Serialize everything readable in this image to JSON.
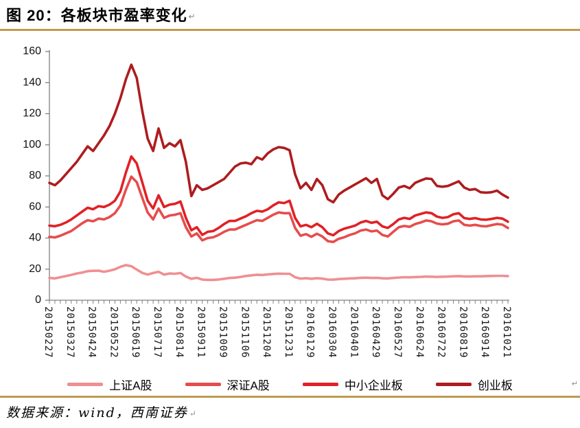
{
  "page": {
    "title": "图 20：各板块市盈率变化",
    "title_paragraph_mark": "↵",
    "row_end_mark": "↵",
    "source_note": "数据来源：wind，西南证券",
    "source_paragraph_mark": "↵"
  },
  "colors": {
    "accent_rule": "#C0994F",
    "axis": "#808080",
    "tick_text": "#111111"
  },
  "chart_data": {
    "type": "line",
    "title": "各板块市盈率变化",
    "x_note": "weekly PE-ratio observations 2015-02-27 to 2016-10-21; axis labels every 4th point",
    "x_labels": [
      "20150227",
      "20150327",
      "20150424",
      "20150522",
      "20150619",
      "20150717",
      "20150814",
      "20150911",
      "20151009",
      "20151106",
      "20151204",
      "20151231",
      "20160129",
      "20160304",
      "20160401",
      "20160429",
      "20160527",
      "20160624",
      "20160722",
      "20160819",
      "20160914",
      "20161021"
    ],
    "x_points_per_label": 4,
    "y_axis": {
      "min": 0,
      "max": 160,
      "step": 20,
      "ticks": [
        0,
        20,
        40,
        60,
        80,
        100,
        120,
        140,
        160
      ]
    },
    "legend_position": "bottom",
    "grid": false,
    "series": [
      {
        "key": "shanghai-a",
        "name": "上证A股",
        "color": "#EF8F92",
        "values": [
          14.4,
          14.0,
          14.8,
          15.5,
          16.3,
          17.2,
          17.8,
          18.7,
          18.9,
          19.0,
          18.3,
          19.0,
          19.9,
          21.5,
          22.6,
          21.9,
          19.7,
          17.6,
          16.5,
          17.5,
          18.3,
          16.5,
          17.2,
          17.0,
          17.5,
          15.2,
          13.8,
          14.4,
          13.3,
          13.1,
          13.1,
          13.3,
          13.8,
          14.3,
          14.5,
          15.0,
          15.6,
          16.0,
          16.4,
          16.2,
          16.6,
          16.9,
          17.1,
          17.0,
          17.0,
          14.8,
          13.9,
          14.2,
          13.8,
          14.2,
          13.9,
          13.3,
          13.2,
          13.6,
          13.8,
          14.0,
          14.1,
          14.4,
          14.5,
          14.3,
          14.4,
          14.1,
          14.0,
          14.3,
          14.6,
          14.8,
          14.7,
          14.9,
          15.0,
          15.2,
          15.1,
          15.0,
          15.1,
          15.2,
          15.4,
          15.5,
          15.3,
          15.3,
          15.4,
          15.4,
          15.5,
          15.6,
          15.7,
          15.7,
          15.5
        ]
      },
      {
        "key": "shenzhen-a",
        "name": "深证A股",
        "color": "#E74C4C",
        "values": [
          40.8,
          40.4,
          41.5,
          43.0,
          44.5,
          47.0,
          49.5,
          51.5,
          50.8,
          52.5,
          52.0,
          53.5,
          56.0,
          61.0,
          71.0,
          79.5,
          76.0,
          66.0,
          56.5,
          52.0,
          59.0,
          53.0,
          54.5,
          55.0,
          56.0,
          47.0,
          41.0,
          43.0,
          38.5,
          40.0,
          40.5,
          42.0,
          44.0,
          45.5,
          45.5,
          47.0,
          48.5,
          50.0,
          51.5,
          51.0,
          53.0,
          55.0,
          56.5,
          56.0,
          56.0,
          46.5,
          41.5,
          42.5,
          40.8,
          42.8,
          41.0,
          38.0,
          37.5,
          39.5,
          40.5,
          42.0,
          43.0,
          44.8,
          45.5,
          44.3,
          44.8,
          42.0,
          41.0,
          44.0,
          47.0,
          47.8,
          47.2,
          49.0,
          50.0,
          51.3,
          50.8,
          49.3,
          48.8,
          49.2,
          50.8,
          51.3,
          48.5,
          48.0,
          48.5,
          47.8,
          47.5,
          48.3,
          49.0,
          48.6,
          46.5
        ]
      },
      {
        "key": "sme-board",
        "name": "中小企业板",
        "color": "#E02125",
        "values": [
          48.0,
          47.6,
          48.5,
          50.0,
          52.0,
          54.5,
          57.0,
          59.5,
          58.5,
          60.5,
          60.0,
          61.5,
          64.0,
          70.0,
          82.0,
          92.5,
          88.0,
          76.0,
          64.0,
          59.0,
          67.5,
          60.0,
          61.5,
          62.0,
          63.5,
          53.0,
          45.0,
          47.0,
          42.0,
          44.0,
          44.5,
          46.5,
          49.0,
          51.0,
          51.0,
          52.5,
          54.0,
          56.0,
          57.5,
          57.0,
          58.5,
          61.0,
          63.0,
          62.5,
          64.0,
          53.0,
          47.5,
          48.5,
          47.0,
          49.2,
          47.0,
          43.0,
          41.8,
          44.5,
          46.0,
          47.0,
          48.0,
          50.0,
          51.0,
          49.8,
          50.5,
          47.5,
          46.5,
          49.0,
          52.0,
          53.0,
          52.3,
          54.5,
          55.5,
          56.5,
          56.0,
          53.8,
          53.0,
          53.5,
          55.3,
          56.0,
          52.8,
          52.3,
          52.8,
          52.0,
          51.8,
          52.3,
          53.0,
          52.5,
          50.5
        ]
      },
      {
        "key": "chinext",
        "name": "创业板",
        "color": "#AE1C1F",
        "values": [
          75.5,
          74.0,
          77.0,
          81.0,
          85.0,
          89.0,
          94.0,
          99.0,
          96.0,
          101.0,
          106.0,
          112.0,
          120.0,
          130.0,
          142.0,
          151.5,
          143.0,
          122.0,
          104.0,
          96.0,
          110.5,
          98.0,
          101.0,
          99.0,
          103.0,
          89.0,
          67.0,
          74.0,
          71.0,
          72.0,
          74.0,
          76.0,
          78.0,
          82.0,
          86.0,
          88.0,
          88.5,
          87.5,
          92.0,
          90.5,
          94.5,
          97.0,
          98.5,
          98.0,
          96.5,
          81.0,
          72.0,
          75.5,
          71.0,
          78.0,
          74.0,
          65.0,
          63.0,
          68.0,
          70.5,
          72.5,
          74.5,
          76.5,
          78.5,
          75.5,
          78.0,
          67.5,
          65.0,
          68.5,
          72.5,
          73.5,
          72.0,
          75.5,
          77.0,
          78.3,
          78.0,
          73.5,
          73.0,
          73.5,
          75.0,
          76.5,
          72.5,
          71.0,
          71.5,
          69.5,
          69.2,
          69.5,
          70.5,
          68.0,
          66.0
        ]
      }
    ]
  }
}
